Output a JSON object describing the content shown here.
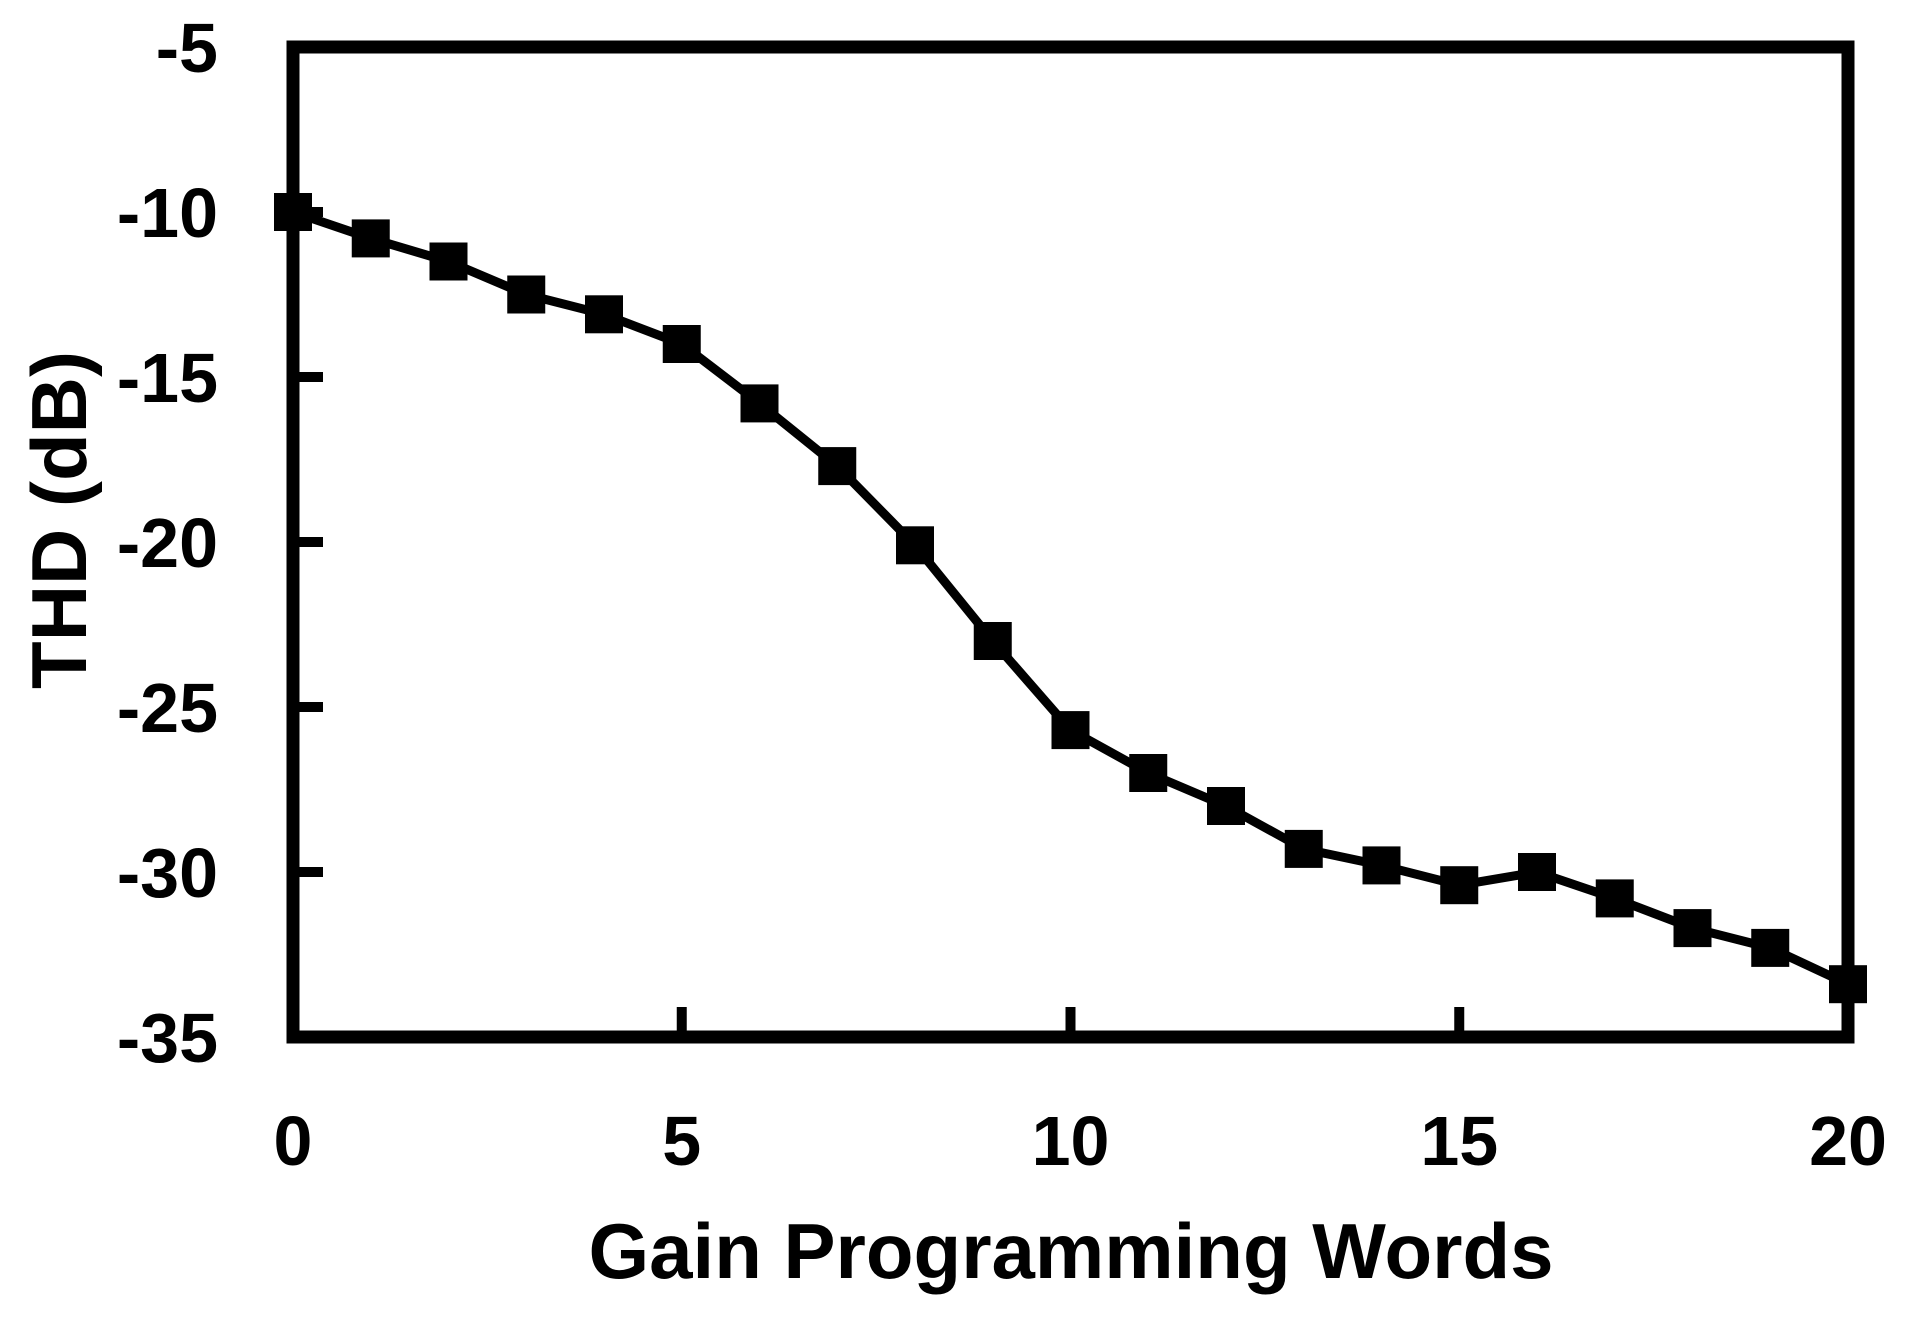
{
  "figure": {
    "background_color": "#ffffff",
    "foreground_color": "#000000"
  },
  "chart_data": {
    "type": "line",
    "title": "",
    "xlabel": "Gain Programming Words",
    "ylabel": "THD (dB)",
    "x": [
      0,
      1,
      2,
      3,
      4,
      5,
      6,
      7,
      8,
      9,
      10,
      11,
      12,
      13,
      14,
      15,
      16,
      17,
      18,
      19,
      20
    ],
    "series": [
      {
        "name": "THD",
        "values": [
          -10.0,
          -10.8,
          -11.5,
          -12.5,
          -13.1,
          -14.0,
          -15.8,
          -17.7,
          -20.1,
          -23.0,
          -25.7,
          -27.0,
          -28.0,
          -29.3,
          -29.8,
          -30.4,
          -30.0,
          -30.8,
          -31.7,
          -32.3,
          -33.4
        ]
      }
    ],
    "xlim": [
      0,
      20
    ],
    "ylim": [
      -35,
      -5
    ],
    "xticks": [
      0,
      5,
      10,
      15,
      20
    ],
    "yticks": [
      -5,
      -10,
      -15,
      -20,
      -25,
      -30,
      -35
    ],
    "grid": false,
    "legend": false,
    "marker": "square",
    "marker_size": 38,
    "line_width": 9,
    "axis_line_width": 13,
    "colors": {
      "line": "#000000",
      "marker": "#000000",
      "axis": "#000000",
      "text": "#000000",
      "background": "#ffffff"
    }
  }
}
